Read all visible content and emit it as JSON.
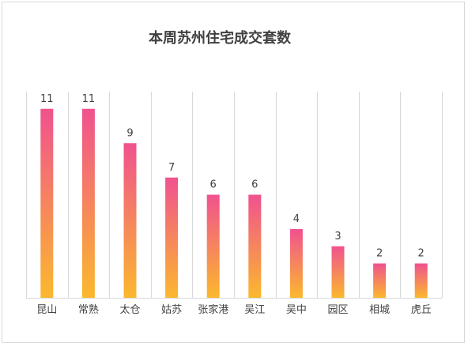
{
  "chart_data": {
    "type": "bar",
    "title": "本周苏州住宅成交套数",
    "categories": [
      "昆山",
      "常熟",
      "太仓",
      "姑苏",
      "张家港",
      "吴江",
      "吴中",
      "园区",
      "相城",
      "虎丘"
    ],
    "values": [
      11,
      11,
      9,
      7,
      6,
      6,
      4,
      3,
      2,
      2
    ],
    "ylim": [
      0,
      12
    ],
    "xlabel": "",
    "ylabel": "",
    "grid": "vertical category separators",
    "data_labels": true,
    "colors": {
      "bar_top": "#f0528f",
      "bar_bottom": "#fbb82e",
      "text": "#404040",
      "grid": "#d9d9d9"
    }
  }
}
